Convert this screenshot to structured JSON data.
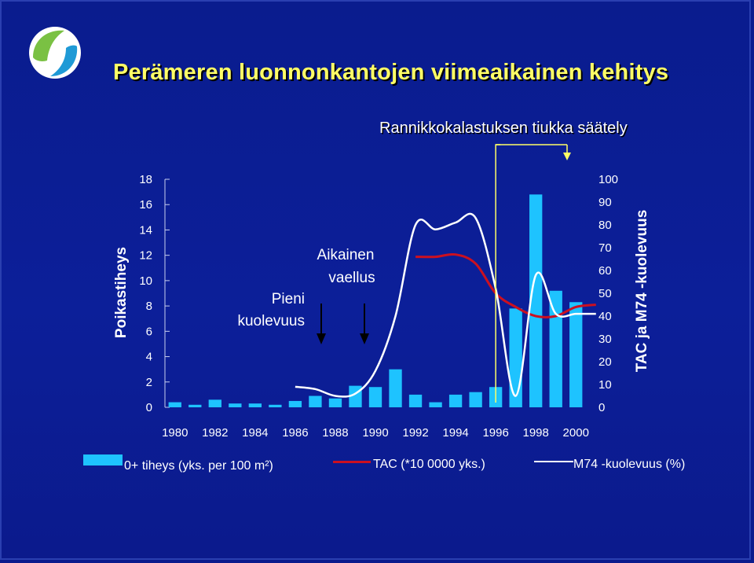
{
  "header": {
    "title": "Perämeren luonnonkantojen viimeaikainen kehitys",
    "subtitle": "Rannikkokalastuksen tiukka säätely"
  },
  "logo": {
    "icon": "leaf-fish-logo-icon",
    "colors": [
      "#7ac143",
      "#1f9ad6"
    ]
  },
  "colors": {
    "background": "#0c1f99",
    "title": "#ffff66",
    "bars": "#1ec3ff",
    "tac_line": "#cc1020",
    "mortality_line": "#ffffff",
    "arrow_yellow": "#ffff66"
  },
  "annotations": {
    "pieni_line1": "Pieni",
    "pieni_line2": "kuolevuus",
    "vaellus_line1": "Aikainen",
    "vaellus_line2": "vaellus"
  },
  "legend": {
    "bar_label": "0+ tiheys (yks. per 100 m²)",
    "tac_label": "TAC (*10 0000 yks.)",
    "mortality_label": "M74 -kuolevuus (%)"
  },
  "chart_data": {
    "type": "bar",
    "title": "",
    "ylabel": "Poikastiheys",
    "y2label": "TAC ja M74 -kuolevuus",
    "ylim": [
      0,
      18
    ],
    "y2lim": [
      0,
      100
    ],
    "yticks": [
      "0",
      "2",
      "4",
      "6",
      "8",
      "10",
      "12",
      "14",
      "16",
      "18"
    ],
    "y2ticks": [
      "0",
      "10",
      "20",
      "30",
      "40",
      "50",
      "60",
      "70",
      "80",
      "90",
      "100"
    ],
    "xtick_labels": [
      "1980",
      "1982",
      "1984",
      "1986",
      "1988",
      "1990",
      "1992",
      "1994",
      "1996",
      "1998",
      "2000"
    ],
    "x": [
      1980,
      1981,
      1982,
      1983,
      1984,
      1985,
      1986,
      1987,
      1988,
      1989,
      1990,
      1991,
      1992,
      1993,
      1994,
      1995,
      1996,
      1997,
      1998,
      1999,
      2000
    ],
    "series": [
      {
        "name": "0+ tiheys (yks. per 100 m²)",
        "kind": "bar",
        "axis": "left",
        "values": [
          0.4,
          0.2,
          0.6,
          0.3,
          0.3,
          0.2,
          0.5,
          0.9,
          0.7,
          1.7,
          1.6,
          3.0,
          1.0,
          0.4,
          1.0,
          1.2,
          1.6,
          7.8,
          16.8,
          9.2,
          8.3
        ]
      },
      {
        "name": "TAC (*10 0000 yks.)",
        "kind": "line",
        "axis": "right",
        "x": [
          1992,
          1993,
          1994,
          1995,
          1996,
          1997,
          1998,
          1999,
          2000,
          2001
        ],
        "values": [
          66,
          66,
          67,
          63,
          50,
          44,
          40,
          40,
          44,
          45
        ]
      },
      {
        "name": "M74 -kuolevuus (%)",
        "kind": "line",
        "axis": "right",
        "x": [
          1986,
          1987,
          1988,
          1989,
          1990,
          1991,
          1992,
          1993,
          1994,
          1995,
          1996,
          1997,
          1998,
          1999,
          2000,
          2001
        ],
        "values": [
          9,
          8,
          5,
          6,
          16,
          40,
          80,
          78,
          81,
          83,
          52,
          5,
          58,
          41,
          41,
          41
        ]
      }
    ],
    "markers": [
      {
        "label_keys": [
          "pieni_line1",
          "pieni_line2"
        ],
        "arrow_x": 1988
      },
      {
        "label_keys": [
          "vaellus_line1",
          "vaellus_line2"
        ],
        "arrow_x": 1990
      }
    ],
    "regulation_start": 1996,
    "grid": false,
    "legend_position": "bottom"
  }
}
